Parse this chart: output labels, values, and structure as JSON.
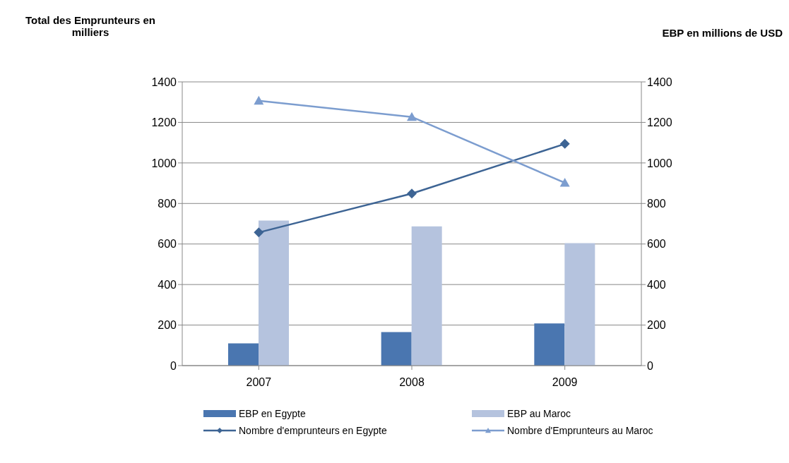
{
  "chart_data": {
    "type": "bar",
    "ylabel": "Total des Emprunteurs en milliers",
    "y2label": "EBP en millions de USD",
    "categories": [
      "2007",
      "2008",
      "2009"
    ],
    "series": [
      {
        "name": "EBP en Egypte",
        "color": "#4a76b0",
        "values": [
          110,
          165,
          208
        ]
      },
      {
        "name": "EBP au Maroc",
        "color": "#b5c3de",
        "values": [
          716,
          687,
          604
        ]
      },
      {
        "name": "Nombre d'emprunteurs en Egypte",
        "type": "line",
        "marker": "diamond",
        "color": "#3d6494",
        "values": [
          657,
          849,
          1094
        ]
      },
      {
        "name": "Nombre d'Emprunteurs au Maroc",
        "type": "line",
        "marker": "triangle",
        "color": "#7c9dcf",
        "values": [
          1307,
          1227,
          902
        ]
      }
    ],
    "ylim": [
      0,
      1400
    ],
    "yticks": [
      0,
      200,
      400,
      600,
      800,
      1000,
      1200,
      1400
    ],
    "y2lim": [
      0,
      1400
    ],
    "y2ticks": [
      0,
      200,
      400,
      600,
      800,
      1000,
      1200,
      1400
    ],
    "grid": "y",
    "legend": "bottom",
    "line_style": "solid"
  }
}
